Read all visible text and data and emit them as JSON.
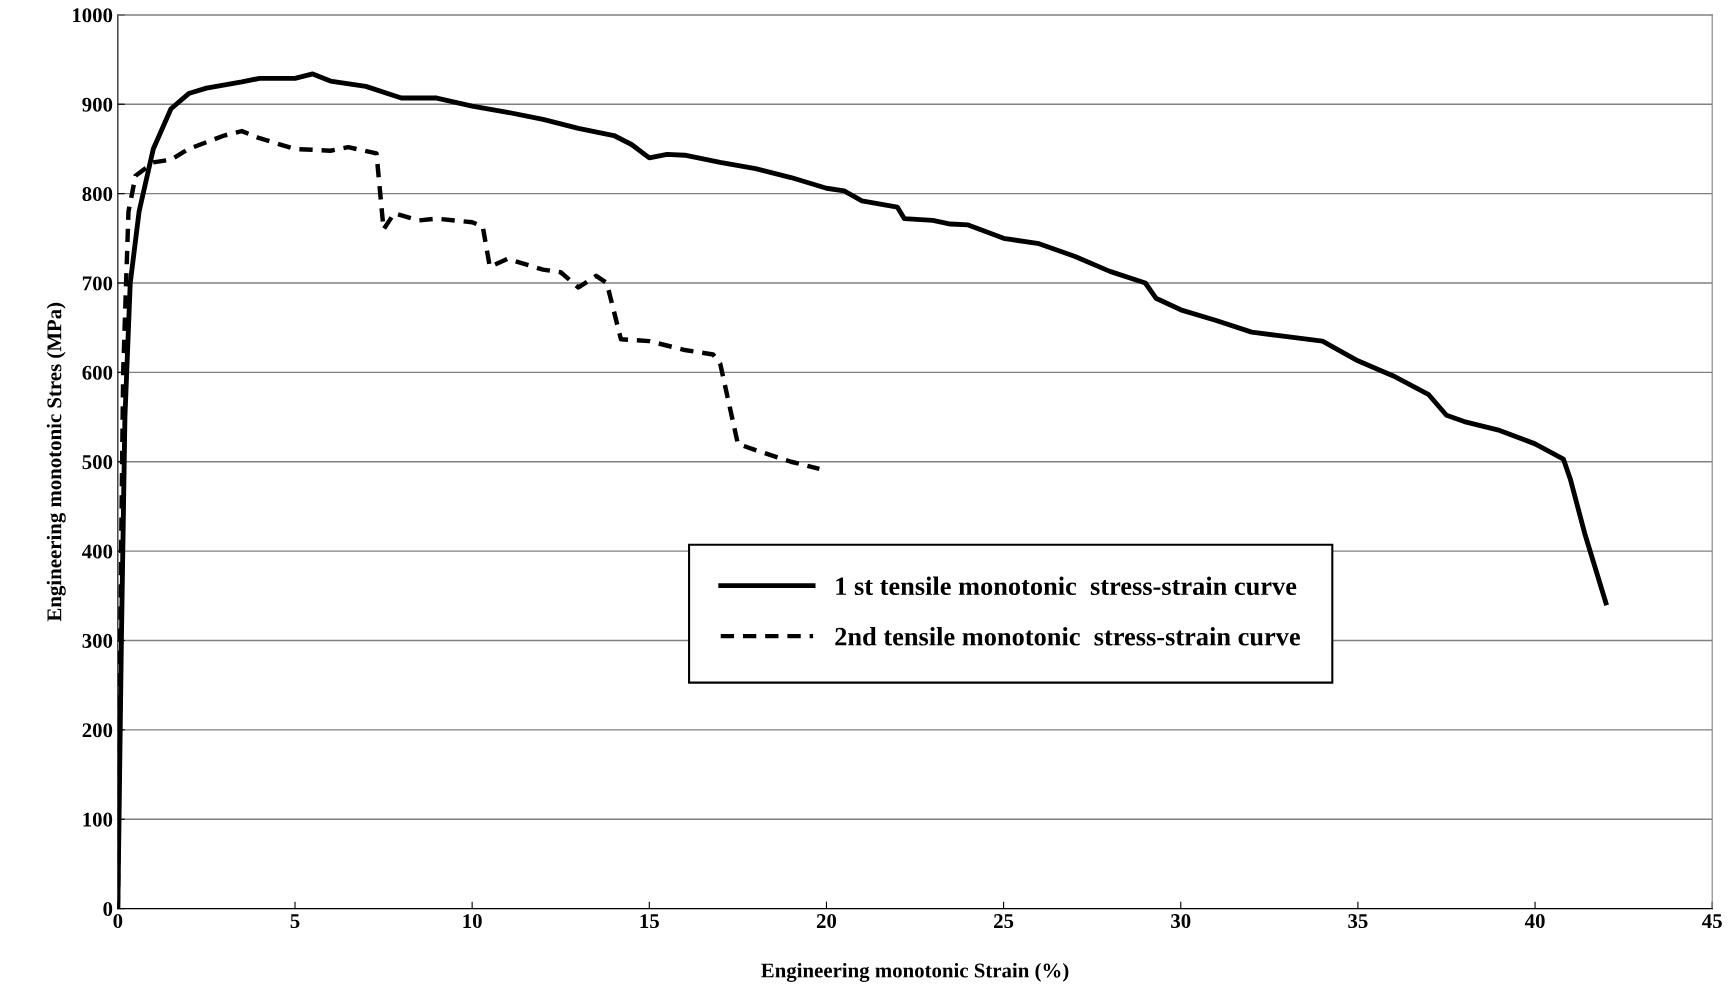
{
  "chart_data": {
    "type": "line",
    "xlabel": "Engineering monotonic Strain (%)",
    "ylabel": "Engineering monotonic Stres (MPa)",
    "xlim": [
      0,
      45
    ],
    "xticks": [
      0,
      5,
      10,
      15,
      20,
      25,
      30,
      35,
      40,
      45
    ],
    "ylim": [
      0,
      1000
    ],
    "yticks": [
      0,
      100,
      200,
      300,
      400,
      500,
      600,
      700,
      800,
      900,
      1000
    ],
    "grid": "y",
    "legend": "center",
    "marker": "none",
    "series": [
      {
        "name": "1 st tensile monotonic  stress-strain curve",
        "color": "#000000",
        "line_style": "solid",
        "x": [
          0,
          0.1,
          0.2,
          0.35,
          0.6,
          1,
          1.5,
          2,
          2.5,
          3.5,
          4,
          5,
          5.5,
          6,
          7,
          8,
          9,
          10,
          11,
          12,
          13,
          14,
          14.5,
          15,
          15.5,
          16,
          17,
          18,
          19,
          20,
          20.5,
          21,
          22,
          22.2,
          23,
          23.5,
          24,
          25,
          26,
          27,
          28,
          29,
          29.3,
          30,
          31,
          32,
          33,
          34,
          35,
          36,
          37,
          37.5,
          38,
          39,
          40,
          40.8,
          41,
          41.4,
          42
        ],
        "values": [
          0,
          300,
          550,
          700,
          780,
          850,
          895,
          912,
          918,
          925,
          929,
          929,
          934,
          926,
          920,
          907,
          907,
          898,
          891,
          883,
          873,
          865,
          855,
          840,
          844,
          843,
          835,
          828,
          818,
          806,
          803,
          792,
          785,
          772,
          770,
          766,
          765,
          750,
          744,
          730,
          713,
          700,
          683,
          670,
          658,
          645,
          640,
          635,
          613,
          596,
          575,
          552,
          545,
          535,
          520,
          503,
          480,
          420,
          342
        ]
      },
      {
        "name": "2nd tensile monotonic  stress-strain curve",
        "color": "#000000",
        "line_style": "dashed",
        "x": [
          0,
          0.05,
          0.15,
          0.3,
          0.5,
          1,
          1.5,
          2,
          3,
          3.5,
          4,
          5,
          6,
          6.5,
          7.3,
          7.5,
          7.8,
          8.5,
          9,
          10,
          10.3,
          10.5,
          11,
          12,
          12.5,
          13,
          13.5,
          13.8,
          14.2,
          15,
          16,
          16.8,
          17,
          17.5,
          18,
          19,
          19.8
        ],
        "values": [
          0,
          250,
          600,
          780,
          820,
          835,
          838,
          850,
          865,
          870,
          862,
          850,
          848,
          852,
          845,
          760,
          778,
          770,
          772,
          768,
          763,
          718,
          727,
          715,
          712,
          695,
          708,
          700,
          637,
          635,
          625,
          620,
          610,
          520,
          513,
          500,
          492
        ]
      }
    ]
  }
}
